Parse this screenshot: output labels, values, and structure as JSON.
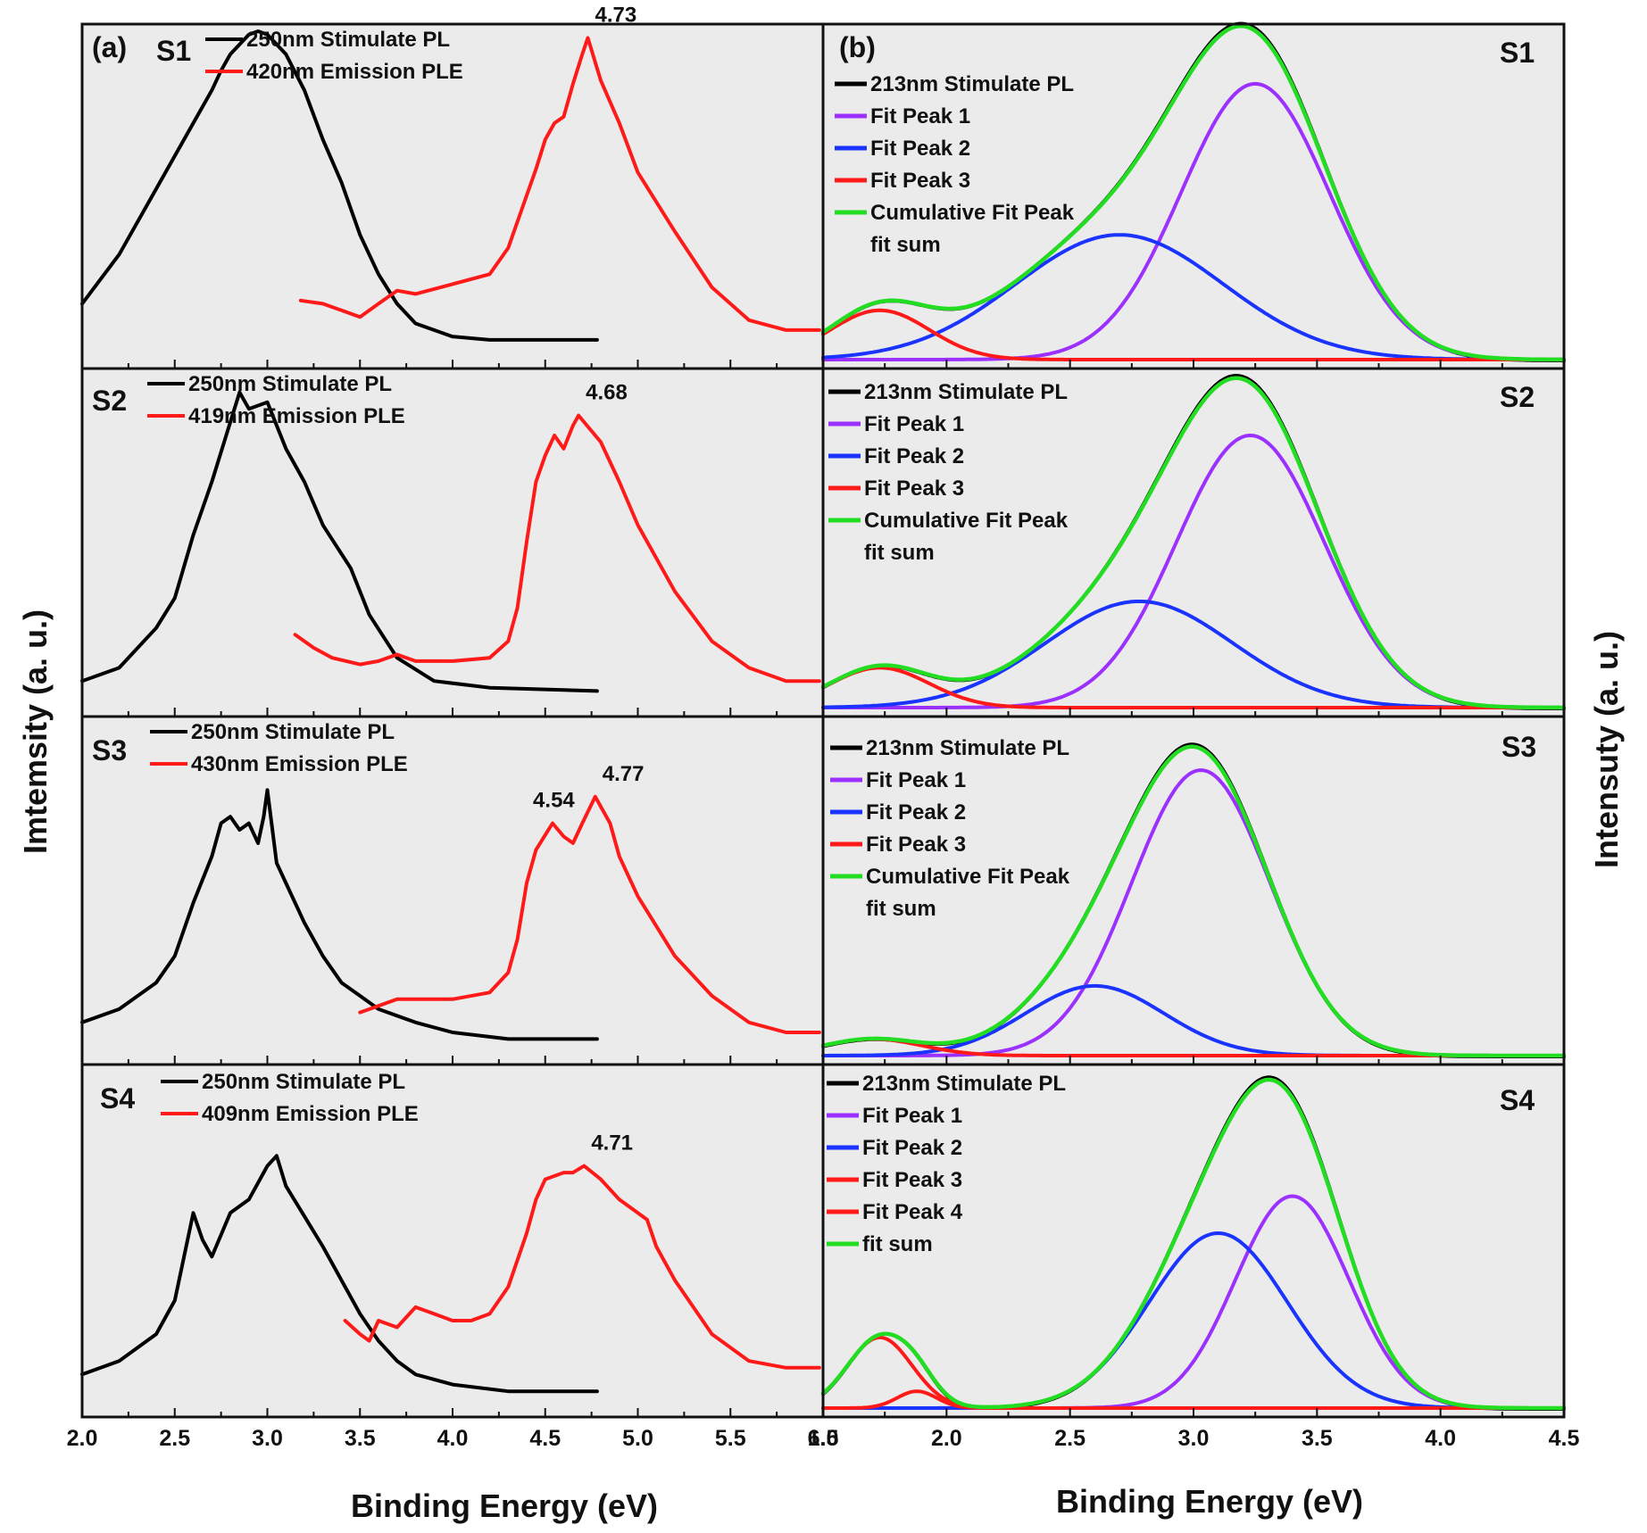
{
  "figure": {
    "left_panel_label": "(a)",
    "right_panel_label": "(b)",
    "left_xlabel": "Binding Energy (eV)",
    "right_xlabel": "Binding Energy (eV)",
    "left_ylabel": "Imtemsity (a. u.)",
    "right_ylabel": "Intensuty (a. u.)",
    "left_x_ticks": [
      "2.0",
      "2.5",
      "3.0",
      "3.5",
      "4.0",
      "4.5",
      "5.0",
      "5.5",
      "6.0"
    ],
    "right_x_ticks": [
      "1.5",
      "2.0",
      "2.5",
      "3.0",
      "3.5",
      "4.0",
      "4.5"
    ],
    "colors": {
      "pl": "#000000",
      "ple": "#ff1a1a",
      "peak1": "#9b30ff",
      "peak2": "#1a33ff",
      "peak3": "#ff1a1a",
      "sum": "#22dd22"
    }
  },
  "chart_data": [
    {
      "type": "line",
      "panel": "a",
      "sample": "S1",
      "xlim": [
        2.0,
        6.0
      ],
      "legend": [
        "250nm Stimulate PL",
        "420nm Emission PLE"
      ],
      "annotations": [
        {
          "text": "4.73",
          "x": 4.73
        }
      ],
      "series": [
        {
          "name": "250nm Stimulate PL",
          "color": "#000000",
          "x": [
            2.0,
            2.2,
            2.4,
            2.6,
            2.7,
            2.75,
            2.8,
            2.9,
            2.95,
            3.0,
            3.1,
            3.2,
            3.3,
            3.4,
            3.5,
            3.6,
            3.7,
            3.8,
            4.0,
            4.2,
            4.5,
            4.78
          ],
          "y": [
            0.17,
            0.32,
            0.52,
            0.72,
            0.82,
            0.88,
            0.93,
            0.99,
            1.0,
            0.99,
            0.93,
            0.82,
            0.67,
            0.54,
            0.38,
            0.26,
            0.17,
            0.11,
            0.07,
            0.06,
            0.06,
            0.06
          ]
        },
        {
          "name": "420nm Emission PLE",
          "color": "#ff1a1a",
          "x": [
            3.18,
            3.3,
            3.4,
            3.5,
            3.6,
            3.7,
            3.8,
            4.0,
            4.2,
            4.3,
            4.4,
            4.45,
            4.5,
            4.55,
            4.6,
            4.65,
            4.7,
            4.73,
            4.8,
            4.9,
            5.0,
            5.2,
            5.4,
            5.6,
            5.8,
            5.98
          ],
          "y": [
            0.18,
            0.17,
            0.15,
            0.13,
            0.17,
            0.21,
            0.2,
            0.23,
            0.26,
            0.34,
            0.5,
            0.58,
            0.67,
            0.72,
            0.74,
            0.84,
            0.93,
            0.98,
            0.85,
            0.72,
            0.57,
            0.39,
            0.22,
            0.12,
            0.09,
            0.09
          ]
        }
      ]
    },
    {
      "type": "line",
      "panel": "a",
      "sample": "S2",
      "xlim": [
        2.0,
        6.0
      ],
      "legend": [
        "250nm Stimulate PL",
        "419nm Emission PLE"
      ],
      "annotations": [
        {
          "text": "4.68",
          "x": 4.68
        }
      ],
      "series": [
        {
          "name": "250nm Stimulate PL",
          "color": "#000000",
          "x": [
            2.0,
            2.2,
            2.4,
            2.5,
            2.6,
            2.7,
            2.8,
            2.85,
            2.9,
            3.0,
            3.1,
            3.2,
            3.3,
            3.45,
            3.55,
            3.7,
            3.9,
            4.2,
            4.78
          ],
          "y": [
            0.08,
            0.12,
            0.24,
            0.33,
            0.52,
            0.68,
            0.86,
            0.95,
            0.9,
            0.92,
            0.78,
            0.68,
            0.55,
            0.42,
            0.28,
            0.15,
            0.08,
            0.06,
            0.05
          ]
        },
        {
          "name": "419nm Emission PLE",
          "color": "#ff1a1a",
          "x": [
            3.15,
            3.25,
            3.35,
            3.5,
            3.6,
            3.7,
            3.8,
            4.0,
            4.2,
            4.3,
            4.35,
            4.4,
            4.45,
            4.5,
            4.55,
            4.6,
            4.65,
            4.68,
            4.8,
            4.9,
            5.0,
            5.2,
            5.4,
            5.6,
            5.8,
            5.98
          ],
          "y": [
            0.22,
            0.18,
            0.15,
            0.13,
            0.14,
            0.16,
            0.14,
            0.14,
            0.15,
            0.2,
            0.3,
            0.5,
            0.68,
            0.76,
            0.82,
            0.78,
            0.85,
            0.88,
            0.8,
            0.68,
            0.55,
            0.35,
            0.2,
            0.12,
            0.08,
            0.08
          ]
        }
      ]
    },
    {
      "type": "line",
      "panel": "a",
      "sample": "S3",
      "xlim": [
        2.0,
        6.0
      ],
      "legend": [
        "250nm Stimulate PL",
        "430nm Emission PLE"
      ],
      "annotations": [
        {
          "text": "4.54",
          "x": 4.54
        },
        {
          "text": "4.77",
          "x": 4.77
        }
      ],
      "series": [
        {
          "name": "250nm Stimulate PL",
          "color": "#000000",
          "x": [
            2.0,
            2.2,
            2.4,
            2.5,
            2.6,
            2.7,
            2.75,
            2.8,
            2.85,
            2.9,
            2.95,
            2.98,
            3.0,
            3.05,
            3.1,
            3.2,
            3.3,
            3.4,
            3.5,
            3.6,
            3.8,
            4.0,
            4.3,
            4.78
          ],
          "y": [
            0.1,
            0.14,
            0.22,
            0.3,
            0.46,
            0.6,
            0.7,
            0.72,
            0.68,
            0.7,
            0.64,
            0.72,
            0.8,
            0.58,
            0.52,
            0.4,
            0.3,
            0.22,
            0.18,
            0.14,
            0.1,
            0.07,
            0.05,
            0.05
          ]
        },
        {
          "name": "430nm Emission PLE",
          "color": "#ff1a1a",
          "x": [
            3.5,
            3.6,
            3.7,
            3.8,
            4.0,
            4.2,
            4.3,
            4.35,
            4.4,
            4.45,
            4.54,
            4.6,
            4.65,
            4.7,
            4.77,
            4.85,
            4.9,
            5.0,
            5.2,
            5.4,
            5.6,
            5.8,
            5.98
          ],
          "y": [
            0.13,
            0.15,
            0.17,
            0.17,
            0.17,
            0.19,
            0.25,
            0.35,
            0.52,
            0.62,
            0.7,
            0.66,
            0.64,
            0.7,
            0.78,
            0.7,
            0.6,
            0.48,
            0.3,
            0.18,
            0.1,
            0.07,
            0.07
          ]
        }
      ]
    },
    {
      "type": "line",
      "panel": "a",
      "sample": "S4",
      "xlim": [
        2.0,
        6.0
      ],
      "legend": [
        "250nm Stimulate PL",
        "409nm Emission PLE"
      ],
      "annotations": [
        {
          "text": "4.71",
          "x": 4.71
        }
      ],
      "series": [
        {
          "name": "250nm Stimulate PL",
          "color": "#000000",
          "x": [
            2.0,
            2.2,
            2.4,
            2.5,
            2.6,
            2.65,
            2.7,
            2.8,
            2.9,
            3.0,
            3.05,
            3.1,
            3.2,
            3.3,
            3.4,
            3.5,
            3.6,
            3.7,
            3.8,
            4.0,
            4.3,
            4.78
          ],
          "y": [
            0.1,
            0.14,
            0.22,
            0.32,
            0.58,
            0.5,
            0.45,
            0.58,
            0.62,
            0.72,
            0.75,
            0.66,
            0.57,
            0.48,
            0.38,
            0.28,
            0.2,
            0.14,
            0.1,
            0.07,
            0.05,
            0.05
          ]
        },
        {
          "name": "409nm Emission PLE",
          "color": "#ff1a1a",
          "x": [
            3.42,
            3.5,
            3.55,
            3.6,
            3.7,
            3.8,
            3.9,
            4.0,
            4.1,
            4.2,
            4.3,
            4.4,
            4.45,
            4.5,
            4.6,
            4.65,
            4.71,
            4.8,
            4.9,
            5.0,
            5.05,
            5.1,
            5.2,
            5.4,
            5.6,
            5.8,
            5.98
          ],
          "y": [
            0.26,
            0.22,
            0.2,
            0.26,
            0.24,
            0.3,
            0.28,
            0.26,
            0.26,
            0.28,
            0.36,
            0.52,
            0.62,
            0.68,
            0.7,
            0.7,
            0.72,
            0.68,
            0.62,
            0.58,
            0.56,
            0.48,
            0.38,
            0.22,
            0.14,
            0.12,
            0.12
          ]
        }
      ]
    },
    {
      "type": "line",
      "panel": "b",
      "sample": "S1",
      "xlim": [
        1.5,
        4.5
      ],
      "legend": [
        "213nm Stimulate PL",
        "Fit Peak 1",
        "Fit Peak 2",
        "Fit Peak 3",
        "Cumulative Fit Peak",
        "fit sum"
      ],
      "peaks": [
        {
          "name": "Fit Peak 1",
          "color": "#9b30ff",
          "center": 3.25,
          "amplitude": 0.84,
          "sigma": 0.3
        },
        {
          "name": "Fit Peak 2",
          "color": "#1a33ff",
          "center": 2.7,
          "amplitude": 0.38,
          "sigma": 0.42
        },
        {
          "name": "Fit Peak 3",
          "color": "#ff1a1a",
          "center": 1.73,
          "amplitude": 0.15,
          "sigma": 0.2
        }
      ],
      "sum": {
        "name": "Cumulative Fit Peak",
        "color": "#22dd22"
      },
      "pl": {
        "name": "213nm Stimulate PL",
        "color": "#000000",
        "visible_under_sum": true
      }
    },
    {
      "type": "line",
      "panel": "b",
      "sample": "S2",
      "xlim": [
        1.5,
        4.5
      ],
      "legend": [
        "213nm Stimulate PL",
        "Fit Peak 1",
        "Fit Peak 2",
        "Fit Peak 3",
        "Cumulative Fit Peak",
        "fit sum"
      ],
      "peaks": [
        {
          "name": "Fit Peak 1",
          "color": "#9b30ff",
          "center": 3.23,
          "amplitude": 0.82,
          "sigma": 0.3
        },
        {
          "name": "Fit Peak 2",
          "color": "#1a33ff",
          "center": 2.78,
          "amplitude": 0.32,
          "sigma": 0.38
        },
        {
          "name": "Fit Peak 3",
          "color": "#ff1a1a",
          "center": 1.73,
          "amplitude": 0.12,
          "sigma": 0.2
        }
      ],
      "sum": {
        "name": "Cumulative Fit Peak",
        "color": "#22dd22"
      },
      "pl": {
        "name": "213nm Stimulate PL",
        "color": "#000000",
        "visible_under_sum": true
      }
    },
    {
      "type": "line",
      "panel": "b",
      "sample": "S3",
      "xlim": [
        1.5,
        4.5
      ],
      "legend": [
        "213nm Stimulate PL",
        "Fit Peak 1",
        "Fit Peak 2",
        "Fit Peak 3",
        "Cumulative Fit Peak",
        "fit sum"
      ],
      "peaks": [
        {
          "name": "Fit Peak 1",
          "color": "#9b30ff",
          "center": 3.03,
          "amplitude": 0.86,
          "sigma": 0.28
        },
        {
          "name": "Fit Peak 2",
          "color": "#1a33ff",
          "center": 2.6,
          "amplitude": 0.21,
          "sigma": 0.28
        },
        {
          "name": "Fit Peak 3",
          "color": "#ff1a1a",
          "center": 1.7,
          "amplitude": 0.05,
          "sigma": 0.2
        }
      ],
      "sum": {
        "name": "Cumulative Fit Peak",
        "color": "#22dd22"
      },
      "pl": {
        "name": "213nm Stimulate PL",
        "color": "#000000",
        "visible_under_sum": true
      }
    },
    {
      "type": "line",
      "panel": "b",
      "sample": "S4",
      "xlim": [
        1.5,
        4.5
      ],
      "legend": [
        "213nm Stimulate PL",
        "Fit Peak 1",
        "Fit Peak 2",
        "Fit Peak 3",
        "Fit Peak 4",
        "fit sum"
      ],
      "peaks": [
        {
          "name": "Fit Peak 1",
          "color": "#9b30ff",
          "center": 3.4,
          "amplitude": 0.63,
          "sigma": 0.23
        },
        {
          "name": "Fit Peak 2",
          "color": "#1a33ff",
          "center": 3.1,
          "amplitude": 0.52,
          "sigma": 0.28
        },
        {
          "name": "Fit Peak 3",
          "color": "#ff1a1a",
          "center": 1.73,
          "amplitude": 0.21,
          "sigma": 0.13
        },
        {
          "name": "Fit Peak 4",
          "color": "#ff1a1a",
          "center": 1.88,
          "amplitude": 0.05,
          "sigma": 0.08
        }
      ],
      "sum": {
        "name": "fit sum",
        "color": "#22dd22"
      },
      "pl": {
        "name": "213nm Stimulate PL",
        "color": "#000000",
        "visible_under_sum": true
      }
    }
  ]
}
